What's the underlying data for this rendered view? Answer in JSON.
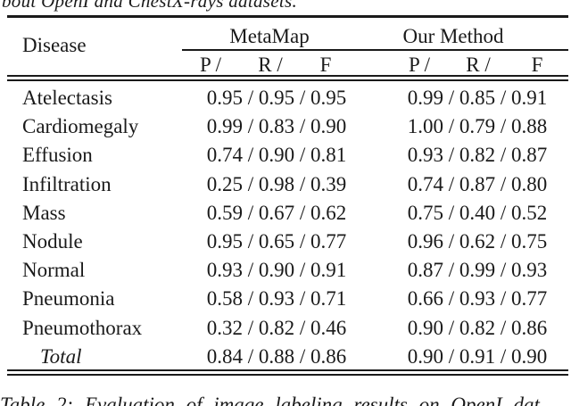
{
  "page": {
    "top_text_fragment": "bout OpenI and ChestX-rays datasets.",
    "bottom_caption_fragment": "Table 2: Evaluation of image labeling results on OpenI dat"
  },
  "table": {
    "disease_header": "Disease",
    "groups": [
      {
        "label": "MetaMap",
        "sub": {
          "p": "P /",
          "r": "R /",
          "f": "F"
        }
      },
      {
        "label": "Our Method",
        "sub": {
          "p": "P /",
          "r": "R /",
          "f": "F"
        }
      }
    ],
    "rows": [
      {
        "disease": "Atelectasis",
        "metamap": "0.95 / 0.95 / 0.95",
        "our": "0.99 / 0.85 / 0.91"
      },
      {
        "disease": "Cardiomegaly",
        "metamap": "0.99 / 0.83 / 0.90",
        "our": "1.00 / 0.79 / 0.88"
      },
      {
        "disease": "Effusion",
        "metamap": "0.74 / 0.90 / 0.81",
        "our": "0.93 / 0.82 / 0.87"
      },
      {
        "disease": "Infiltration",
        "metamap": "0.25 / 0.98 / 0.39",
        "our": "0.74 / 0.87 / 0.80"
      },
      {
        "disease": "Mass",
        "metamap": "0.59 / 0.67 / 0.62",
        "our": "0.75 / 0.40 / 0.52"
      },
      {
        "disease": "Nodule",
        "metamap": "0.95 / 0.65 / 0.77",
        "our": "0.96 / 0.62 / 0.75"
      },
      {
        "disease": "Normal",
        "metamap": "0.93 / 0.90 / 0.91",
        "our": "0.87 / 0.99 / 0.93"
      },
      {
        "disease": "Pneumonia",
        "metamap": "0.58 / 0.93 / 0.71",
        "our": "0.66 / 0.93 / 0.77"
      },
      {
        "disease": "Pneumothorax",
        "metamap": "0.32 / 0.82 / 0.46",
        "our": "0.90 / 0.82 / 0.86"
      },
      {
        "disease": "Total",
        "metamap": "0.84 / 0.88 / 0.86",
        "our": "0.90 / 0.91 / 0.90"
      }
    ]
  },
  "colors": {
    "ink": "#1a1a1a",
    "background": "#ffffff"
  }
}
